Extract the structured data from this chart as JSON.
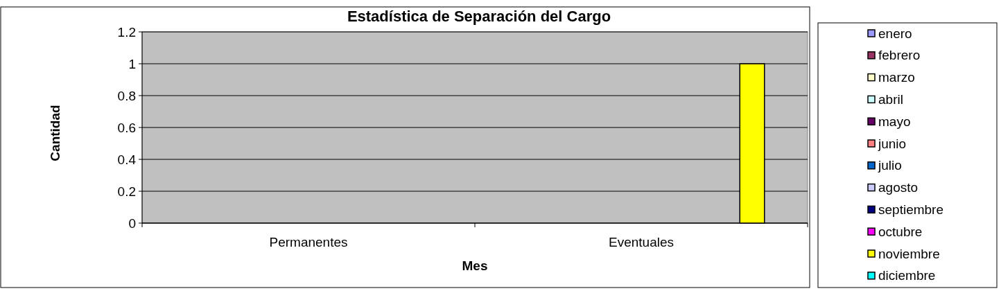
{
  "chart_data": {
    "type": "bar",
    "title": "Estadística de Separación del Cargo",
    "xlabel": "Mes",
    "ylabel": "Cantidad",
    "categories": [
      "Permanentes",
      "Eventuales"
    ],
    "series": [
      {
        "name": "enero",
        "color": "#9999ff",
        "values": [
          0,
          0
        ]
      },
      {
        "name": "febrero",
        "color": "#993366",
        "values": [
          0,
          0
        ]
      },
      {
        "name": "marzo",
        "color": "#ffffcc",
        "values": [
          0,
          0
        ]
      },
      {
        "name": "abril",
        "color": "#ccffff",
        "values": [
          0,
          0
        ]
      },
      {
        "name": "mayo",
        "color": "#660066",
        "values": [
          0,
          0
        ]
      },
      {
        "name": "junio",
        "color": "#ff8080",
        "values": [
          0,
          0
        ]
      },
      {
        "name": "julio",
        "color": "#0066cc",
        "values": [
          0,
          0
        ]
      },
      {
        "name": "agosto",
        "color": "#ccccff",
        "values": [
          0,
          0
        ]
      },
      {
        "name": "septiembre",
        "color": "#000080",
        "values": [
          0,
          0
        ]
      },
      {
        "name": "octubre",
        "color": "#ff00ff",
        "values": [
          0,
          0
        ]
      },
      {
        "name": "noviembre",
        "color": "#ffff00",
        "values": [
          0,
          1
        ]
      },
      {
        "name": "diciembre",
        "color": "#00ffff",
        "values": [
          0,
          0
        ]
      }
    ],
    "ylim": [
      0,
      1.2
    ],
    "yticks": [
      0,
      0.2,
      0.4,
      0.6,
      0.8,
      1,
      1.2
    ],
    "grid": "y",
    "legend": "right"
  }
}
